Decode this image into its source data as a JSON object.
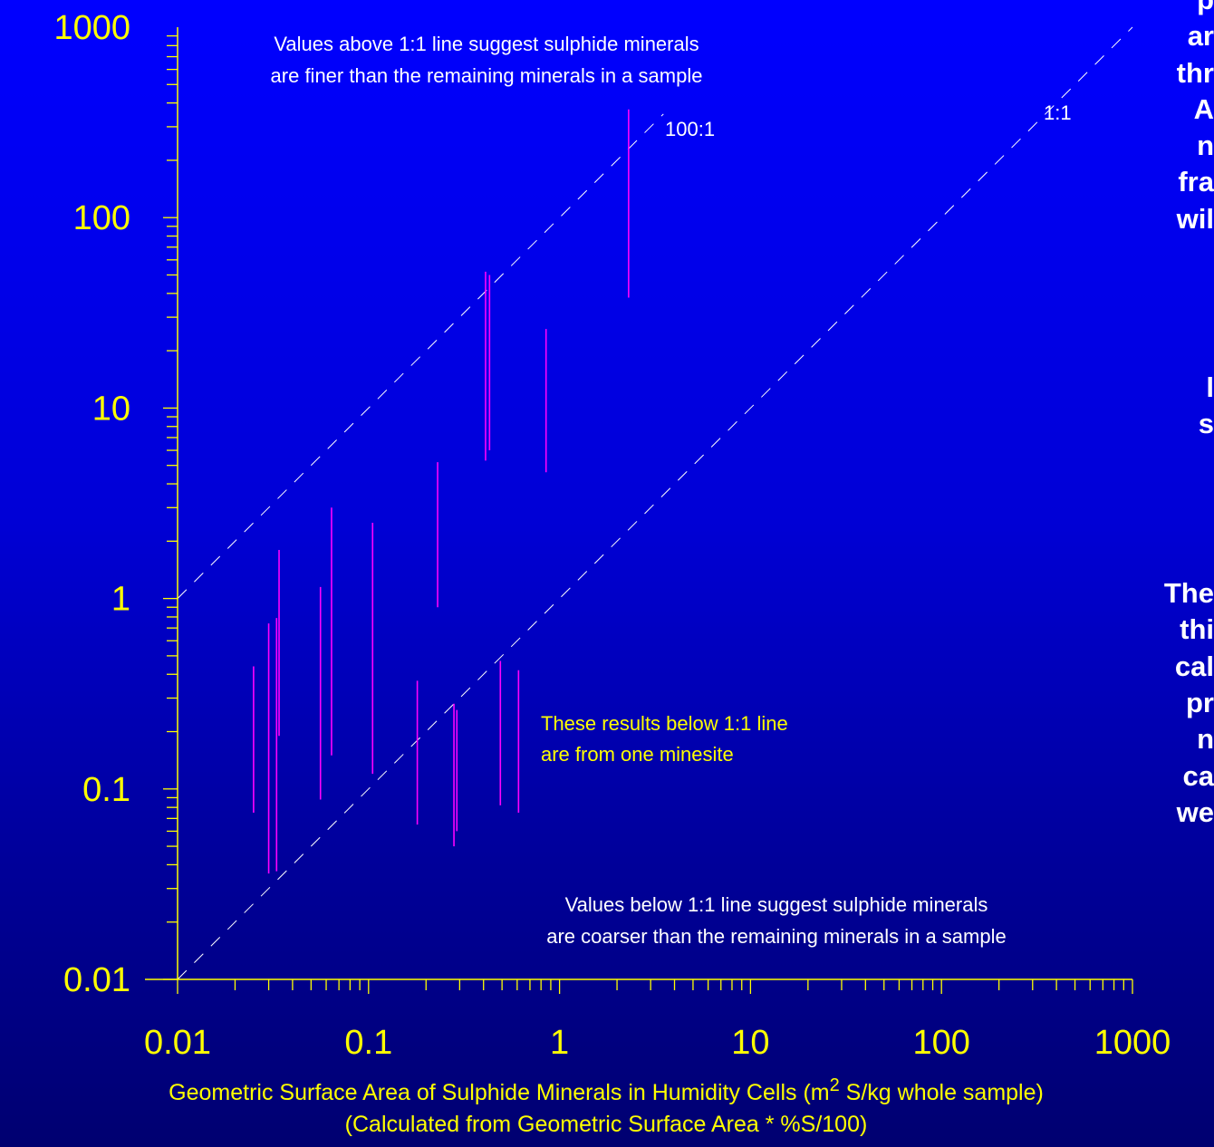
{
  "chart_data": {
    "type": "scatter",
    "xscale": "log",
    "yscale": "log",
    "xlim": [
      0.01,
      1000
    ],
    "ylim": [
      0.01,
      1000
    ],
    "x_ticks": [
      "0.01",
      "0.1",
      "1",
      "10",
      "100",
      "1000"
    ],
    "y_ticks": [
      "0.01",
      "0.1",
      "1",
      "10",
      "100",
      "1000"
    ],
    "xlabel_main": "Geometric Surface Area of Sulphide Minerals in Humidity Cells (m",
    "xlabel_sup": "2",
    "xlabel_rest": " S/kg whole sample)",
    "xlabel_line2": "(Calculated from Geometric Surface Area * %S/100)",
    "ylabel": "",
    "grid": false,
    "colors": {
      "axis": "#ffff00",
      "ranges": "#ff00ff",
      "ref_lines": "#ffffff",
      "bg": "#0000cc"
    },
    "reference_lines": [
      {
        "label": "1:1",
        "ratio": 1
      },
      {
        "label": "100:1",
        "ratio": 100
      }
    ],
    "annotations": [
      {
        "lines": [
          "Values above 1:1 line suggest sulphide minerals",
          "are finer than the remaining minerals in a sample"
        ],
        "color": "white"
      },
      {
        "lines": [
          "These results below 1:1 line",
          "are from one minesite"
        ],
        "color": "yellow"
      },
      {
        "lines": [
          "Values below 1:1 line suggest sulphide minerals",
          "are coarser than the remaining minerals in a sample"
        ],
        "color": "white"
      }
    ],
    "ranges": [
      {
        "x": 0.025,
        "ymin": 0.075,
        "ymax": 0.44
      },
      {
        "x": 0.03,
        "ymin": 0.036,
        "ymax": 0.74
      },
      {
        "x": 0.033,
        "ymin": 0.037,
        "ymax": 0.79
      },
      {
        "x": 0.034,
        "ymin": 0.19,
        "ymax": 1.8
      },
      {
        "x": 0.056,
        "ymin": 0.088,
        "ymax": 1.15
      },
      {
        "x": 0.064,
        "ymin": 0.15,
        "ymax": 3.0
      },
      {
        "x": 0.105,
        "ymin": 0.12,
        "ymax": 2.5
      },
      {
        "x": 0.18,
        "ymin": 0.065,
        "ymax": 0.37
      },
      {
        "x": 0.23,
        "ymin": 0.9,
        "ymax": 5.2
      },
      {
        "x": 0.28,
        "ymin": 0.05,
        "ymax": 0.28
      },
      {
        "x": 0.29,
        "ymin": 0.06,
        "ymax": 0.26
      },
      {
        "x": 0.41,
        "ymin": 5.3,
        "ymax": 52
      },
      {
        "x": 0.43,
        "ymin": 6.0,
        "ymax": 50
      },
      {
        "x": 0.49,
        "ymin": 0.082,
        "ymax": 0.47
      },
      {
        "x": 0.61,
        "ymin": 0.075,
        "ymax": 0.42
      },
      {
        "x": 0.85,
        "ymin": 4.6,
        "ymax": 26
      },
      {
        "x": 2.3,
        "ymin": 38,
        "ymax": 370
      }
    ]
  },
  "side_text": [
    "p",
    "ar",
    "thr",
    "A",
    "n",
    "fra",
    "wil",
    "",
    "l",
    "s",
    "",
    "",
    "The",
    "thi",
    "cal",
    "pr",
    "n",
    "ca",
    "we"
  ]
}
